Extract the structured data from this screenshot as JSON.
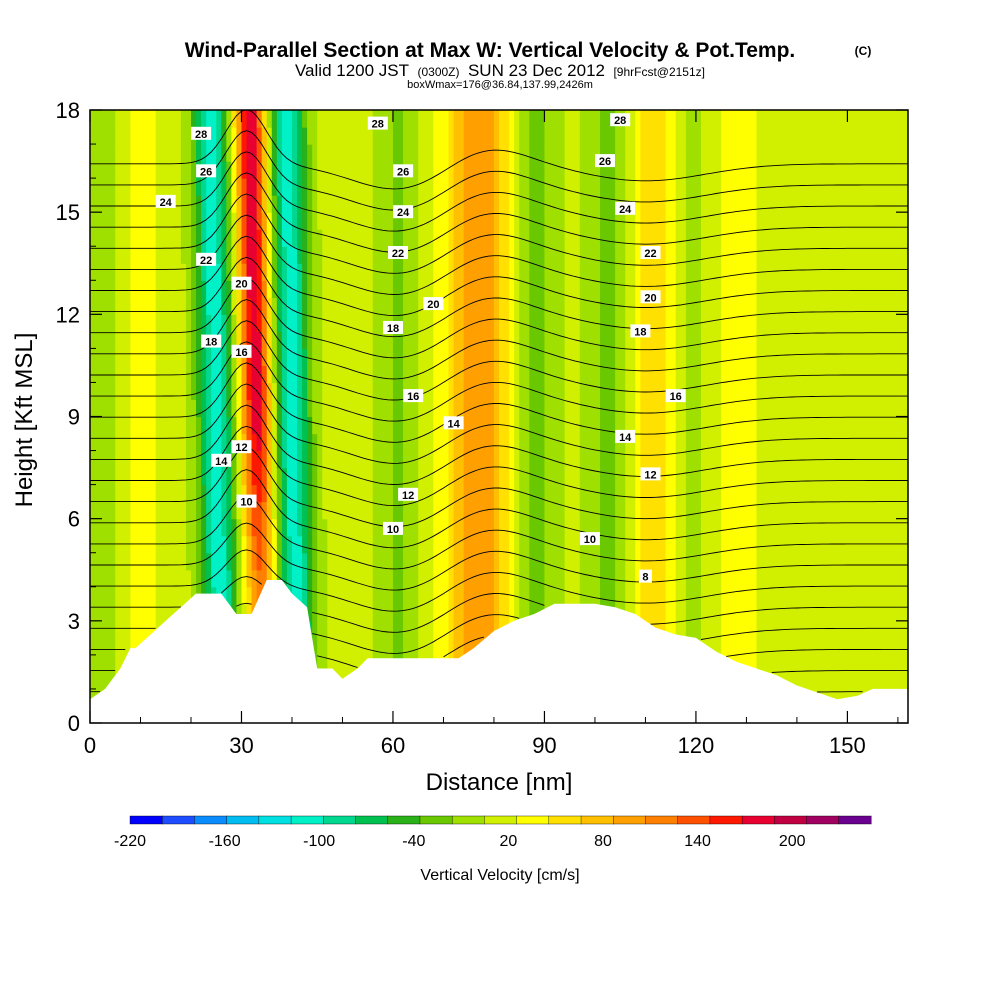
{
  "chart_data": {
    "type": "heatmap",
    "title": "Wind-Parallel Section at Max W: Vertical Velocity & Pot.Temp.",
    "copyright_mark": "(C)",
    "subtitle_valid": "Valid 1200 JST",
    "subtitle_z": "(0300Z)",
    "subtitle_date": "SUN 23 Dec 2012",
    "subtitle_fcst": "[9hrFcst@2151z]",
    "subtitle2": "boxWmax=176@36.84,137.99,2426m",
    "xlabel": "Distance [nm]",
    "ylabel": "Height [Kft MSL]",
    "xlim": [
      0,
      162
    ],
    "ylim": [
      0,
      18
    ],
    "x_ticks": [
      0,
      30,
      60,
      90,
      120,
      150
    ],
    "y_ticks": [
      0,
      3,
      6,
      9,
      12,
      15,
      18
    ],
    "colorbar": {
      "label": "Vertical Velocity [cm/s]",
      "min": -220,
      "max": 250,
      "tick_values": [
        -220,
        -160,
        -100,
        -40,
        20,
        80,
        140,
        200
      ],
      "colors": [
        "#0000ff",
        "#1e4cff",
        "#0a8cff",
        "#00bcf0",
        "#00e0e0",
        "#00f0c8",
        "#00d890",
        "#00c050",
        "#2ab018",
        "#6ac800",
        "#a0e000",
        "#d0f000",
        "#ffff00",
        "#ffe000",
        "#ffc000",
        "#ffa000",
        "#ff8000",
        "#ff5000",
        "#ff1800",
        "#e80030",
        "#c00040",
        "#a00060",
        "#6a0090"
      ]
    },
    "updraft_bands": [
      {
        "x": 33,
        "w_max": 176
      },
      {
        "x": 77,
        "w_max": 90
      },
      {
        "x": 113,
        "w_max": 55
      },
      {
        "x": 128,
        "w_max": 20
      },
      {
        "x": 8,
        "w_max": 25
      }
    ],
    "downdraft_bands": [
      {
        "x": 25,
        "w_min": -120
      },
      {
        "x": 40,
        "w_min": -120
      },
      {
        "x": 61,
        "w_min": -30
      },
      {
        "x": 88,
        "w_min": -40
      },
      {
        "x": 103,
        "w_min": -40
      },
      {
        "x": 118,
        "w_min": -40
      },
      {
        "x": 4,
        "w_min": -30
      }
    ],
    "terrain_profile": {
      "x": [
        0,
        3,
        6,
        8,
        9,
        12,
        15,
        18,
        21,
        23,
        26,
        29,
        32,
        35,
        38,
        40,
        43,
        45,
        48,
        50,
        53,
        55,
        58,
        61,
        64,
        67,
        70,
        73,
        76,
        80,
        84,
        88,
        92,
        96,
        100,
        104,
        108,
        112,
        116,
        120,
        124,
        128,
        132,
        136,
        140,
        144,
        148,
        152,
        155,
        158,
        162
      ],
      "height_kft": [
        0.7,
        1.0,
        1.6,
        2.2,
        2.2,
        2.6,
        3.0,
        3.4,
        3.8,
        3.8,
        3.8,
        3.2,
        3.2,
        4.2,
        4.2,
        3.8,
        3.4,
        1.6,
        1.6,
        1.3,
        1.6,
        1.9,
        1.9,
        1.9,
        1.9,
        1.9,
        1.9,
        1.9,
        2.2,
        2.7,
        3.0,
        3.2,
        3.5,
        3.5,
        3.5,
        3.4,
        3.2,
        2.8,
        2.6,
        2.5,
        2.1,
        1.8,
        1.6,
        1.4,
        1.1,
        0.9,
        0.7,
        0.8,
        1.0,
        1.0,
        1.0
      ]
    },
    "isentropes": {
      "variable": "potential temperature",
      "values": [
        4,
        5,
        6,
        7,
        8,
        9,
        10,
        11,
        12,
        13,
        14,
        15,
        16,
        17,
        18,
        19,
        20,
        21,
        22,
        23,
        24,
        25,
        26,
        27,
        28,
        29,
        30
      ],
      "labeled": [
        {
          "text": "28",
          "x": 22,
          "y": 17.3
        },
        {
          "text": "26",
          "x": 23,
          "y": 16.2
        },
        {
          "text": "24",
          "x": 15,
          "y": 15.3
        },
        {
          "text": "22",
          "x": 23,
          "y": 13.6
        },
        {
          "text": "20",
          "x": 30,
          "y": 12.9
        },
        {
          "text": "18",
          "x": 24,
          "y": 11.2
        },
        {
          "text": "16",
          "x": 30,
          "y": 10.9
        },
        {
          "text": "14",
          "x": 26,
          "y": 7.7
        },
        {
          "text": "12",
          "x": 30,
          "y": 8.1
        },
        {
          "text": "10",
          "x": 31,
          "y": 6.5
        },
        {
          "text": "28",
          "x": 57,
          "y": 17.6
        },
        {
          "text": "26",
          "x": 62,
          "y": 16.2
        },
        {
          "text": "24",
          "x": 62,
          "y": 15.0
        },
        {
          "text": "22",
          "x": 61,
          "y": 13.8
        },
        {
          "text": "20",
          "x": 68,
          "y": 12.3
        },
        {
          "text": "18",
          "x": 60,
          "y": 11.6
        },
        {
          "text": "16",
          "x": 64,
          "y": 9.6
        },
        {
          "text": "14",
          "x": 72,
          "y": 8.8
        },
        {
          "text": "12",
          "x": 63,
          "y": 6.7
        },
        {
          "text": "10",
          "x": 60,
          "y": 5.7
        },
        {
          "text": "28",
          "x": 105,
          "y": 17.7
        },
        {
          "text": "26",
          "x": 102,
          "y": 16.5
        },
        {
          "text": "24",
          "x": 106,
          "y": 15.1
        },
        {
          "text": "22",
          "x": 111,
          "y": 13.8
        },
        {
          "text": "20",
          "x": 111,
          "y": 12.5
        },
        {
          "text": "18",
          "x": 109,
          "y": 11.5
        },
        {
          "text": "16",
          "x": 116,
          "y": 9.6
        },
        {
          "text": "14",
          "x": 106,
          "y": 8.4
        },
        {
          "text": "12",
          "x": 111,
          "y": 7.3
        },
        {
          "text": "10",
          "x": 99,
          "y": 5.4
        },
        {
          "text": "8",
          "x": 110,
          "y": 4.3
        }
      ]
    }
  }
}
